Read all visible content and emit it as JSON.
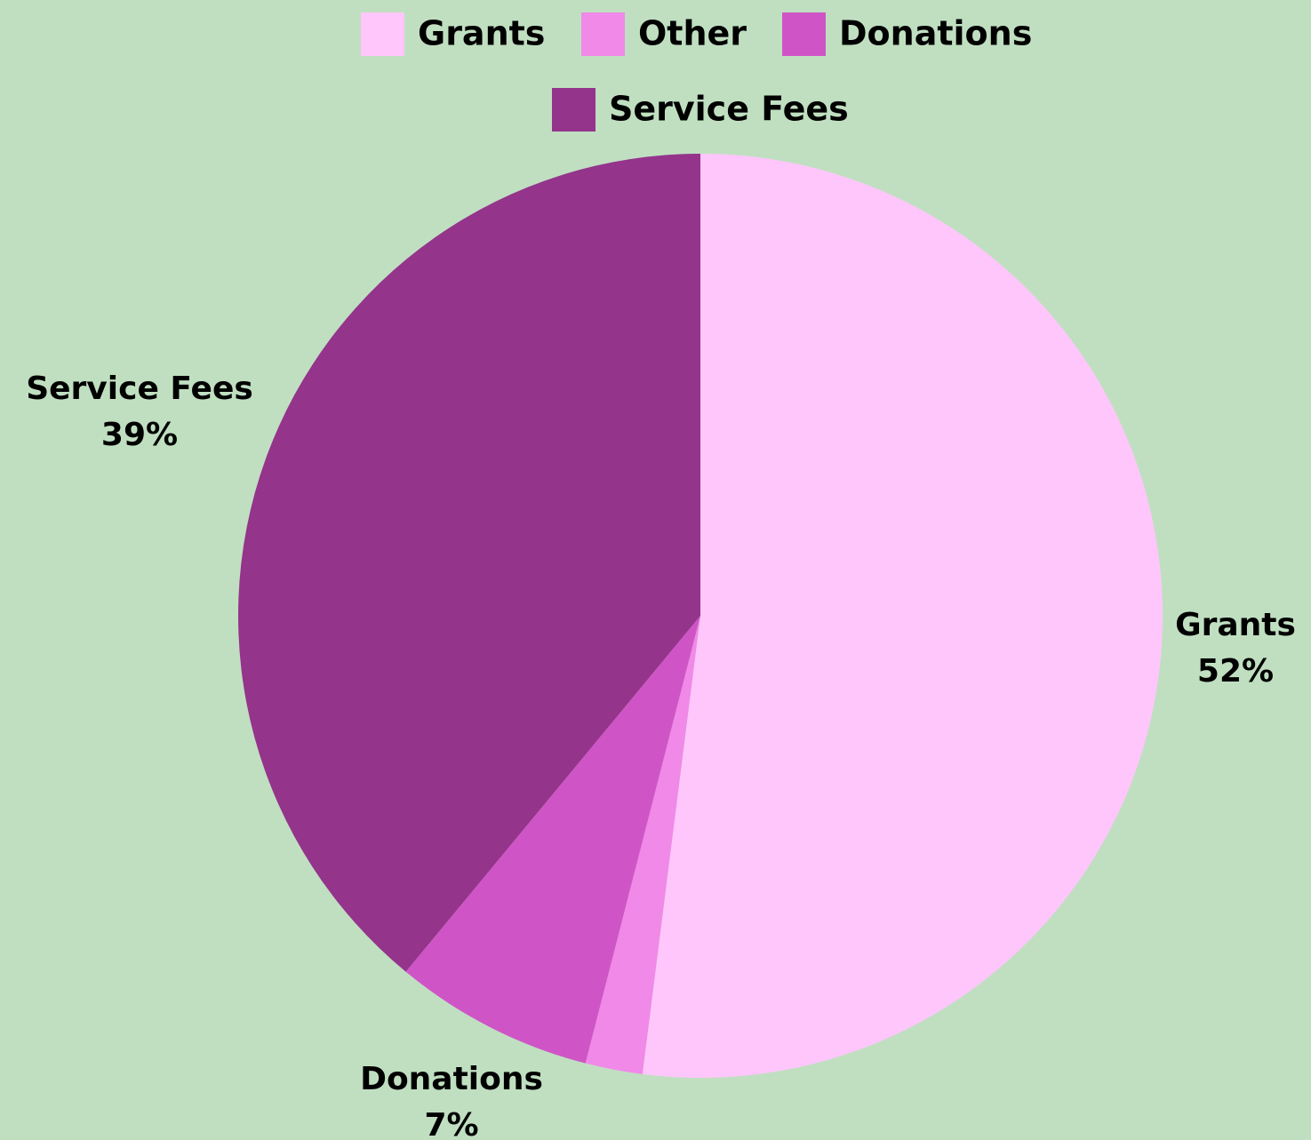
{
  "chart_data": {
    "type": "pie",
    "slices": [
      {
        "label": "Grants",
        "value": 52,
        "display": "52%",
        "color": "#ffc6fb",
        "show_label": true
      },
      {
        "label": "Other",
        "value": 2,
        "display": "2%",
        "color": "#f089e8",
        "show_label": false
      },
      {
        "label": "Donations",
        "value": 7,
        "display": "7%",
        "color": "#cf55c6",
        "show_label": true
      },
      {
        "label": "Service Fees",
        "value": 39,
        "display": "39%",
        "color": "#94348b",
        "show_label": true
      }
    ],
    "legend_placement": "top",
    "background_color": "#c0dfc1",
    "start_angle_deg": 0,
    "direction": "clockwise"
  }
}
